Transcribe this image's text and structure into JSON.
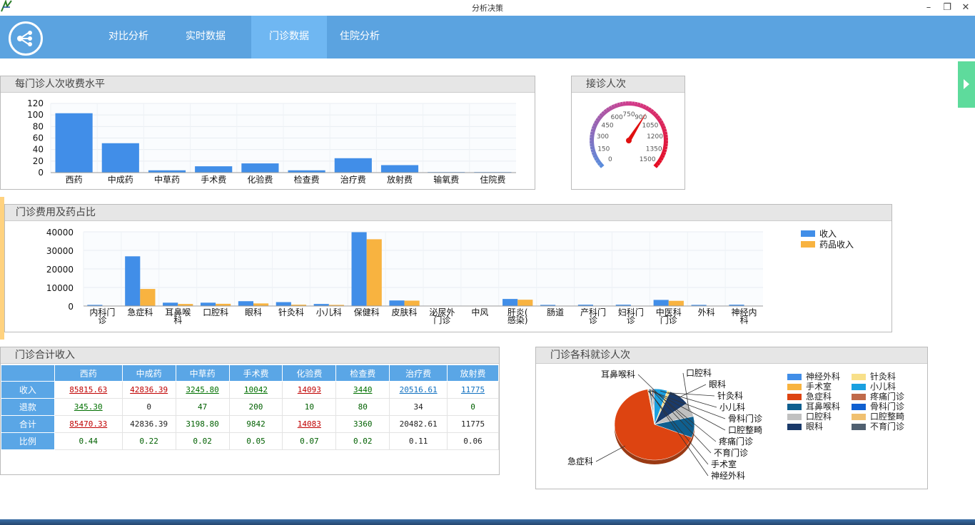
{
  "window": {
    "title": "分析决策"
  },
  "nav": {
    "tabs": [
      {
        "label": "对比分析"
      },
      {
        "label": "实时数据"
      },
      {
        "label": "门诊数据",
        "active": true
      },
      {
        "label": "住院分析"
      }
    ]
  },
  "colors": {
    "nav": "#5ba3e0",
    "tab_active": "#6fb7f2",
    "bar_blue": "#418ee8",
    "bar_orange": "#f8b340",
    "side_handle": "#5edb9c"
  },
  "panels": {
    "fee_level": {
      "title": "每门诊人次收费水平"
    },
    "visits": {
      "title": "接诊人次"
    },
    "fee_ratio": {
      "title": "门诊费用及药占比"
    },
    "total_income": {
      "title": "门诊合计收入"
    },
    "dept_visits": {
      "title": "门诊各科就诊人次"
    }
  },
  "chart_data": [
    {
      "type": "bar",
      "title": "每门诊人次收费水平",
      "categories": [
        "西药",
        "中成药",
        "中草药",
        "手术费",
        "化验费",
        "检查费",
        "治疗费",
        "放射费",
        "输氧费",
        "住院费"
      ],
      "values": [
        103,
        51,
        4,
        11,
        16,
        4,
        25,
        13,
        1,
        1
      ],
      "ylim": [
        0,
        120
      ],
      "yticks": [
        "120",
        "100",
        "80",
        "60",
        "40",
        "20",
        "0"
      ],
      "grid": true
    },
    {
      "type": "gauge",
      "title": "接诊人次",
      "ticks": [
        "0",
        "150",
        "300",
        "450",
        "600",
        "750",
        "900",
        "1050",
        "1200",
        "1350",
        "1500"
      ],
      "range": [
        0,
        1500
      ],
      "value": 930
    },
    {
      "type": "bar",
      "title": "门诊费用及药占比",
      "categories": [
        "内科门诊",
        "急症科",
        "耳鼻喉科",
        "口腔科",
        "眼科",
        "针灸科",
        "小儿科",
        "保健科",
        "皮肤科",
        "泌尿外门诊",
        "中风",
        "肝炎(感染)",
        "肠道",
        "产科门诊",
        "妇科门诊",
        "中医科门诊",
        "外科",
        "神经内科"
      ],
      "series": [
        {
          "name": "收入",
          "color": "#418ee8",
          "values": [
            600,
            26800,
            1800,
            1800,
            2600,
            2100,
            1100,
            39800,
            3000,
            0,
            0,
            3800,
            600,
            700,
            700,
            3300,
            600,
            700
          ]
        },
        {
          "name": "药品收入",
          "color": "#f8b340",
          "values": [
            100,
            9200,
            1100,
            1200,
            1400,
            700,
            600,
            36000,
            2900,
            0,
            0,
            3400,
            100,
            100,
            100,
            2800,
            100,
            100
          ]
        }
      ],
      "ylim": [
        0,
        40000
      ],
      "yticks": [
        "40000",
        "30000",
        "20000",
        "10000",
        "0"
      ],
      "legend": "top-right",
      "grid": true
    },
    {
      "type": "pie",
      "title": "门诊各科就诊人次",
      "slices": [
        {
          "name": "神经外科",
          "value": 0.3,
          "color": "#418ee8"
        },
        {
          "name": "手术室",
          "value": 0.3,
          "color": "#f8b340"
        },
        {
          "name": "急症科",
          "value": 62,
          "color": "#dd4411"
        },
        {
          "name": "耳鼻喉科",
          "value": 9,
          "color": "#0f5f8f"
        },
        {
          "name": "口腔科",
          "value": 6,
          "color": "#c0c0c0"
        },
        {
          "name": "眼科",
          "value": 8,
          "color": "#1a3a6a"
        },
        {
          "name": "针灸科",
          "value": 1.2,
          "color": "#f8e08a"
        },
        {
          "name": "小儿科",
          "value": 5,
          "color": "#1aa0e0"
        },
        {
          "name": "疼痛门诊",
          "value": 0.4,
          "color": "#c06a4a"
        },
        {
          "name": "骨科门诊",
          "value": 0.4,
          "color": "#1060d0"
        },
        {
          "name": "口腔整畸",
          "value": 0.4,
          "color": "#f0c070"
        },
        {
          "name": "不育门诊",
          "value": 0.6,
          "color": "#506070"
        }
      ],
      "legend": "right"
    }
  ],
  "income_table": {
    "corner": "",
    "columns": [
      "西药",
      "中成药",
      "中草药",
      "手术费",
      "化验费",
      "检查费",
      "治疗费",
      "放射费"
    ],
    "rows": [
      {
        "label": "收入",
        "cells": [
          "85815.63",
          "42836.39",
          "3245.80",
          "10042",
          "14093",
          "3440",
          "20516.61",
          "11775"
        ]
      },
      {
        "label": "退款",
        "cells": [
          "345.30",
          "0",
          "47",
          "200",
          "10",
          "80",
          "34",
          "0"
        ]
      },
      {
        "label": "合计",
        "cells": [
          "85470.33",
          "42836.39",
          "3198.80",
          "9842",
          "14083",
          "3360",
          "20482.61",
          "11775"
        ]
      },
      {
        "label": "比例",
        "cells": [
          "0.44",
          "0.22",
          "0.02",
          "0.05",
          "0.07",
          "0.02",
          "0.11",
          "0.06"
        ]
      }
    ]
  }
}
